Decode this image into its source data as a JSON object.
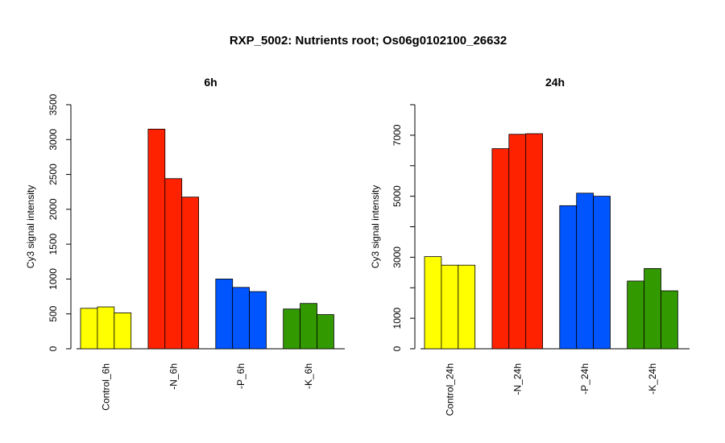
{
  "title": "RXP_5002: Nutrients root; Os06g0102100_26632",
  "colors": [
    "#ffff00",
    "#ff2200",
    "#0055ff",
    "#339900"
  ],
  "chart_data": [
    {
      "type": "bar",
      "title": "6h",
      "ylabel": "Cy3 signal intensity",
      "xlabel": "",
      "ylim": [
        0,
        3500
      ],
      "yticks": [
        0,
        500,
        1000,
        1500,
        2000,
        2500,
        3000,
        3500
      ],
      "grid": false,
      "categories": [
        "Control_6h",
        "-N_6h",
        "-P_6h",
        "-K_6h"
      ],
      "values": [
        [
          580,
          600,
          515
        ],
        [
          3150,
          2440,
          2175
        ],
        [
          1000,
          880,
          820
        ],
        [
          570,
          650,
          490
        ]
      ]
    },
    {
      "type": "bar",
      "title": "24h",
      "ylabel": "Cy3 signal intensity",
      "xlabel": "",
      "ylim": [
        0,
        8000
      ],
      "yticks": [
        0,
        1000,
        2000,
        3000,
        4000,
        5000,
        6000,
        7000,
        8000
      ],
      "ytick_labels": [
        "0",
        "1000",
        "",
        "3000",
        "",
        "5000",
        "",
        "7000",
        ""
      ],
      "grid": false,
      "categories": [
        "Control_24h",
        "-N_24h",
        "-P_24h",
        "-K_24h"
      ],
      "values": [
        [
          3020,
          2740,
          2740
        ],
        [
          6560,
          7030,
          7050
        ],
        [
          4690,
          5100,
          5000
        ],
        [
          2220,
          2630,
          1900
        ]
      ]
    }
  ]
}
